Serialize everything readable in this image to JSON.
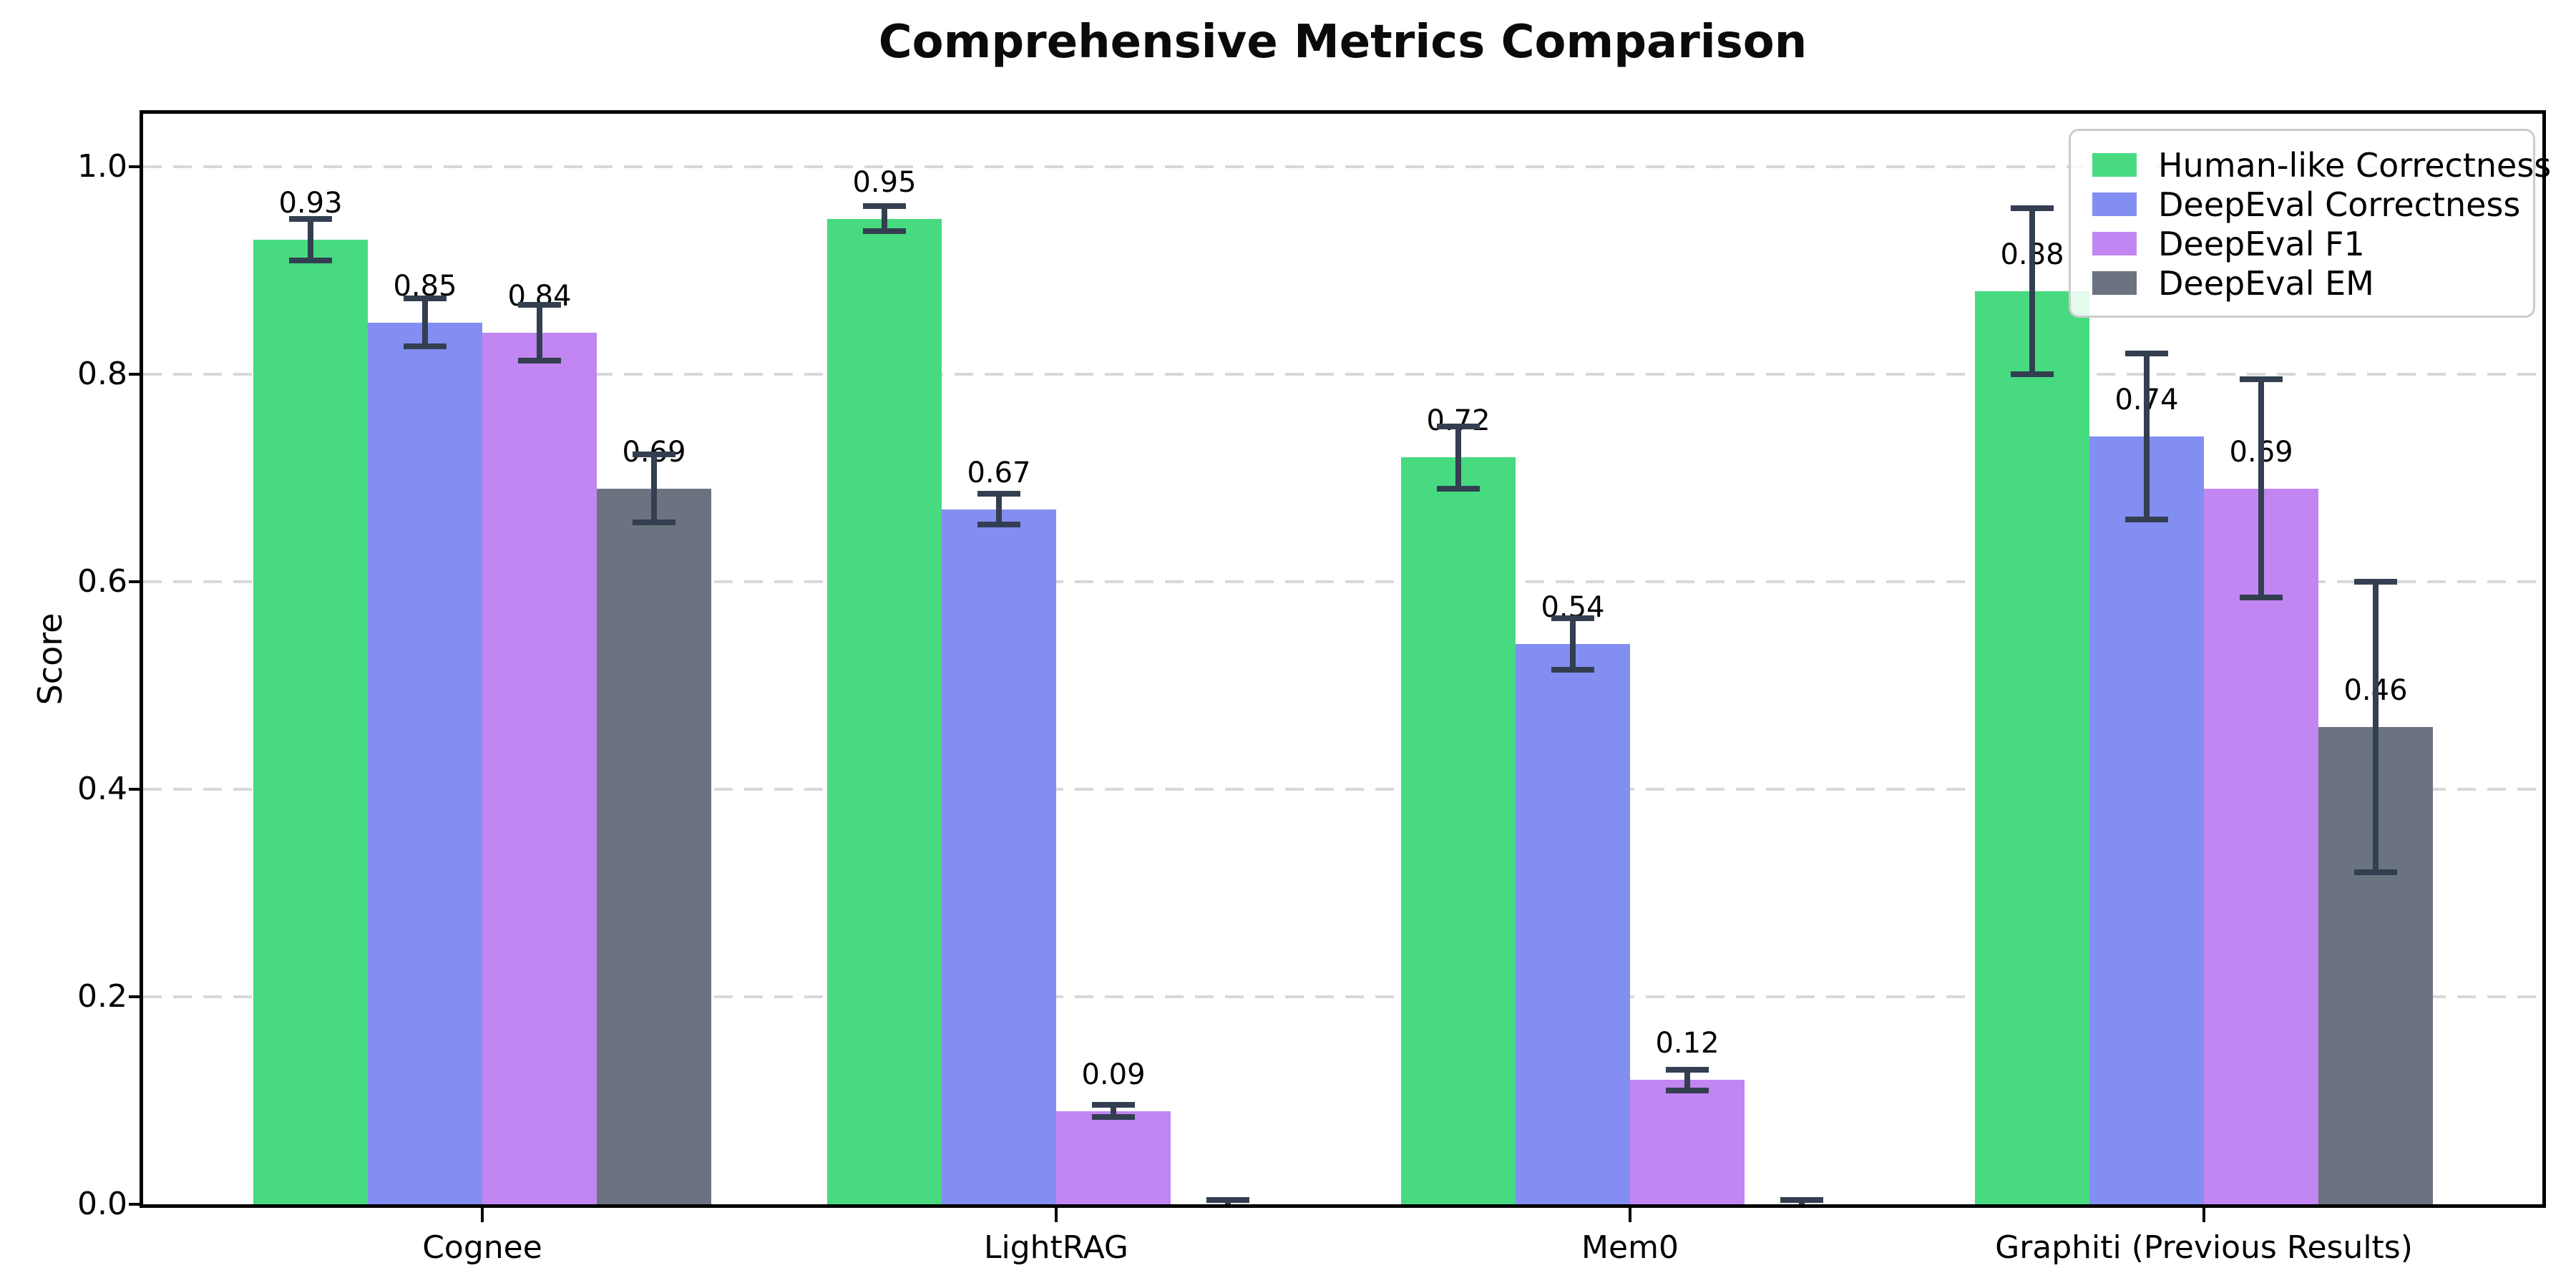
{
  "chart_data": {
    "type": "bar",
    "title": "Comprehensive Metrics Comparison",
    "xlabel": "",
    "ylabel": "Score",
    "categories": [
      "Cognee",
      "LightRAG",
      "Mem0",
      "Graphiti (Previous Results)"
    ],
    "series": [
      {
        "name": "Human-like Correctness",
        "color": "#47DA81",
        "values": [
          0.93,
          0.95,
          0.72,
          0.88
        ],
        "errors": [
          0.02,
          0.012,
          0.03,
          0.08
        ],
        "labels": [
          "0.93",
          "0.95",
          "0.72",
          "0.88"
        ]
      },
      {
        "name": "DeepEval Correctness",
        "color": "#838EF2",
        "values": [
          0.85,
          0.67,
          0.54,
          0.74
        ],
        "errors": [
          0.023,
          0.015,
          0.025,
          0.08
        ],
        "labels": [
          "0.85",
          "0.67",
          "0.54",
          "0.74"
        ]
      },
      {
        "name": "DeepEval F1",
        "color": "#C186F2",
        "values": [
          0.84,
          0.09,
          0.12,
          0.69
        ],
        "errors": [
          0.027,
          0.006,
          0.01,
          0.105
        ],
        "labels": [
          "0.84",
          "0.09",
          "0.12",
          "0.69"
        ]
      },
      {
        "name": "DeepEval EM",
        "color": "#6B7380",
        "values": [
          0.69,
          0.0,
          0.0,
          0.46
        ],
        "errors": [
          0.033,
          0.004,
          0.004,
          0.14
        ],
        "labels": [
          "0.69",
          "",
          "",
          "0.46"
        ]
      }
    ],
    "ytick_labels": [
      "0.0",
      "0.2",
      "0.4",
      "0.6",
      "0.8",
      "1.0"
    ],
    "ytick_values": [
      0.0,
      0.2,
      0.4,
      0.6,
      0.8,
      1.0
    ],
    "ylim": [
      0,
      1.05
    ],
    "grid": {
      "axis": "y",
      "style": "dashed",
      "color": "#d8d8d8"
    },
    "legend_position": "upper right",
    "error_bar_color": "#333F50"
  }
}
